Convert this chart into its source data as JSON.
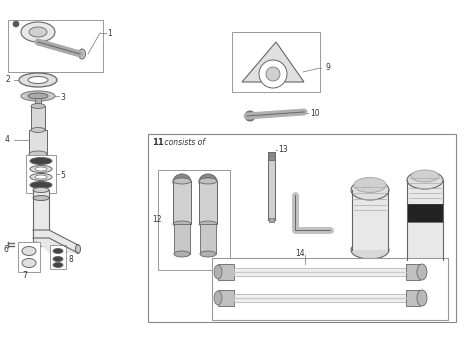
{
  "bg_color": "#ffffff",
  "line_color": "#666666",
  "text_color": "#333333",
  "figsize": [
    4.65,
    3.5
  ],
  "dpi": 100
}
